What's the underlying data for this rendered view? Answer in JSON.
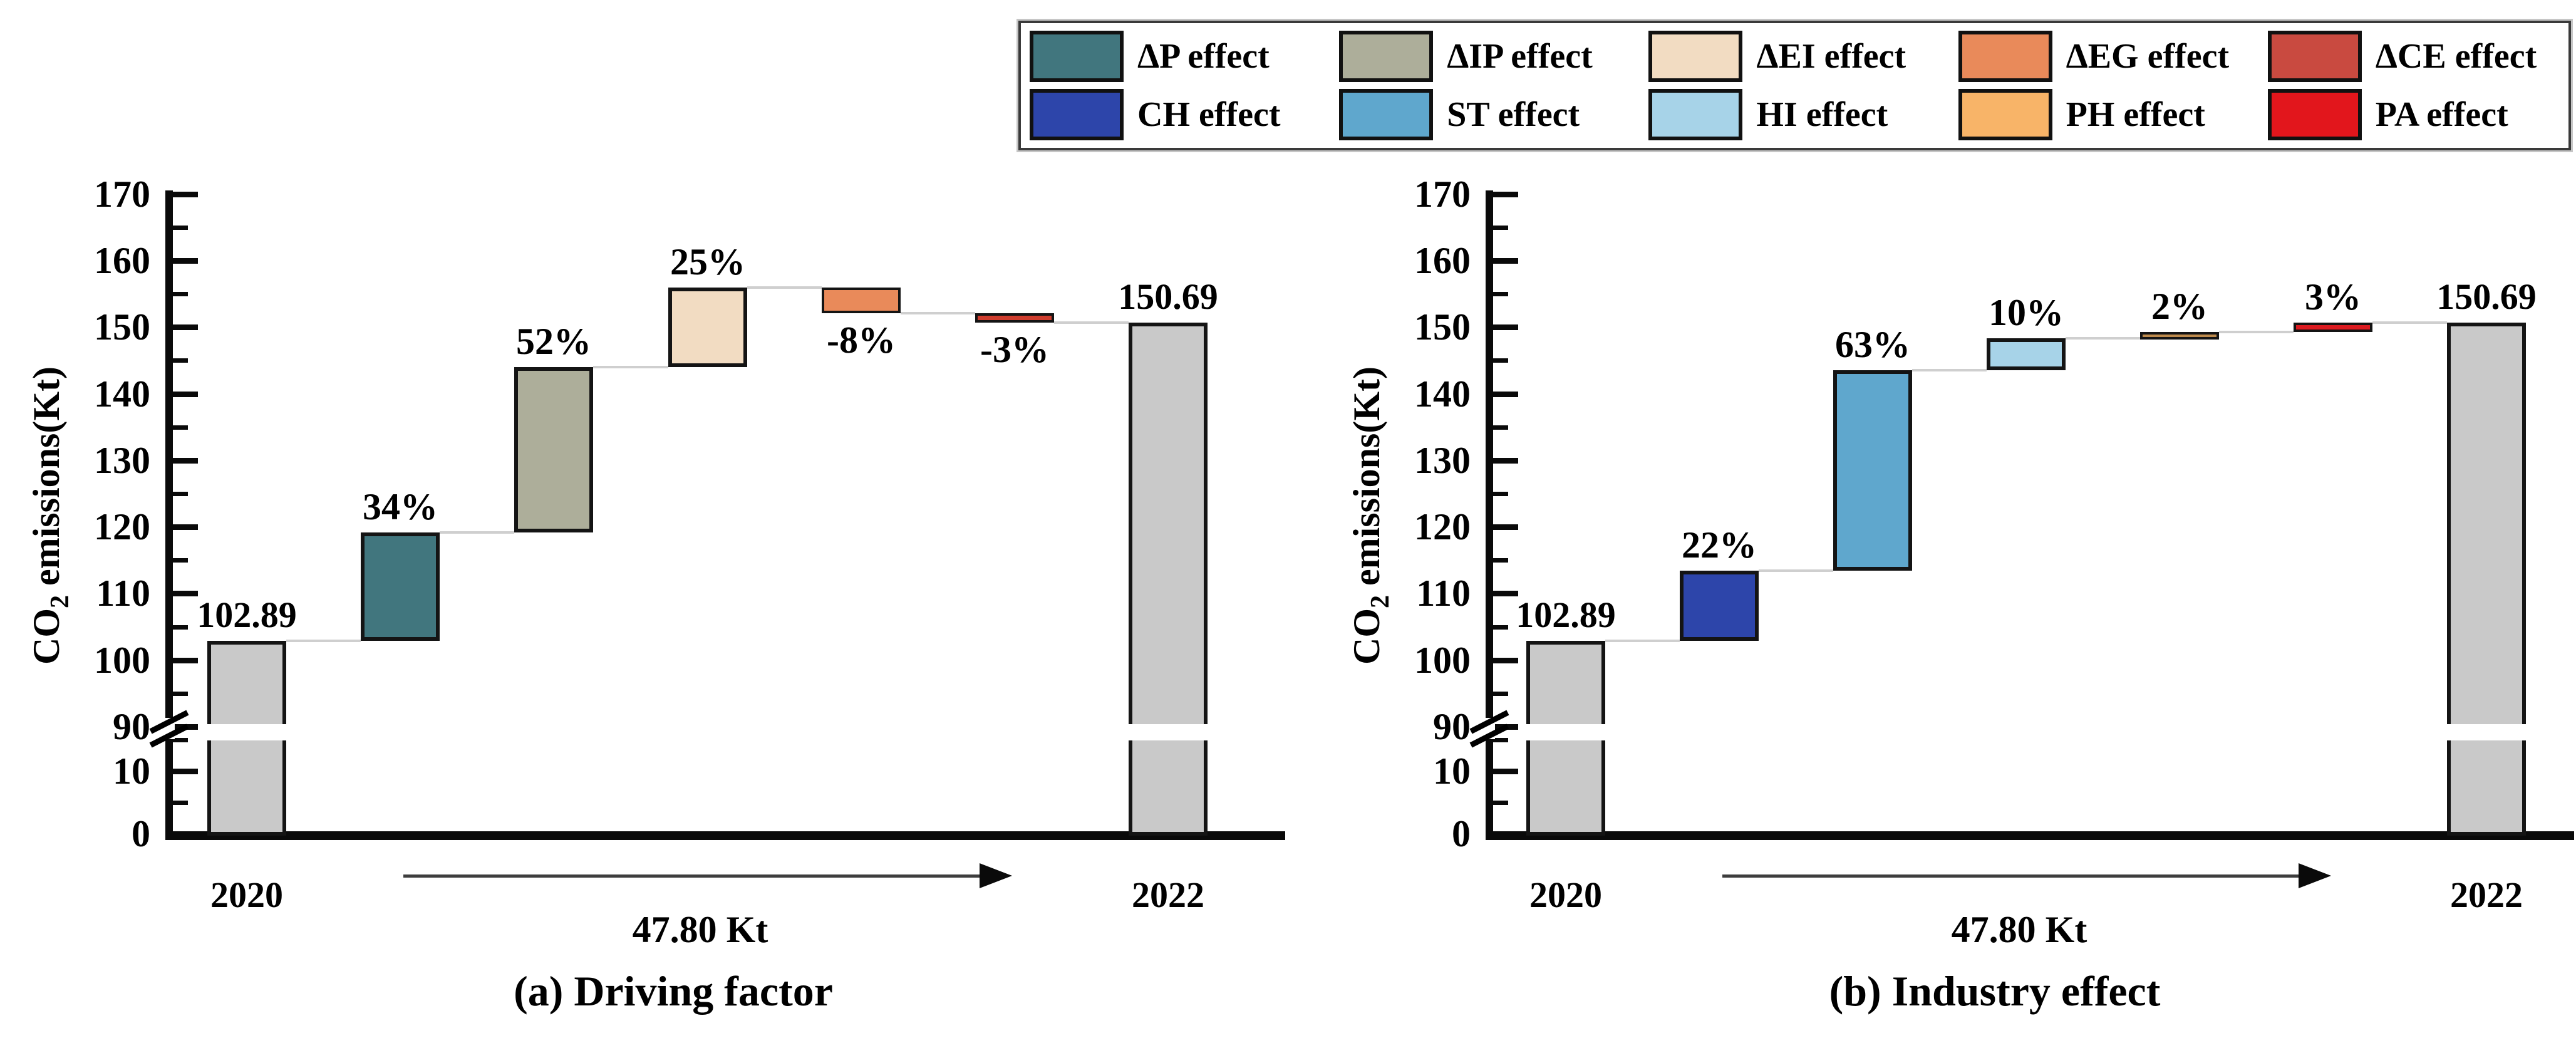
{
  "legend": {
    "items": [
      {
        "label": "ΔP effect",
        "color": "#41767e"
      },
      {
        "label": "ΔIP effect",
        "color": "#adae9a"
      },
      {
        "label": "ΔEI effect",
        "color": "#f2dcc2"
      },
      {
        "label": "ΔEG effect",
        "color": "#e98a5a"
      },
      {
        "label": "ΔCE effect",
        "color": "#c94a40"
      },
      {
        "label": "CH effect",
        "color": "#2d45aa"
      },
      {
        "label": "ST effect",
        "color": "#5fa7cd"
      },
      {
        "label": "HI effect",
        "color": "#a7d3e8"
      },
      {
        "label": "PH effect",
        "color": "#f8b468"
      },
      {
        "label": "PA effect",
        "color": "#e2161c"
      }
    ]
  },
  "chart_data": [
    {
      "type": "bar",
      "subtype": "waterfall",
      "title": "(a) Driving factor",
      "ylabel_parts": [
        "CO",
        "2",
        " emissions(Kt)"
      ],
      "ylim": [
        0,
        170
      ],
      "y_axis_break": [
        15,
        90
      ],
      "y_major_ticks": [
        170,
        160,
        150,
        140,
        130,
        120,
        110,
        100,
        90,
        10,
        0
      ],
      "y_tick_labels": [
        "170",
        "160",
        "150",
        "140",
        "130",
        "120",
        "110",
        "100",
        "90",
        "10",
        "0"
      ],
      "y_minor_ticks": [
        165,
        155,
        145,
        135,
        125,
        115,
        105,
        95,
        15,
        5
      ],
      "x_labels": [
        "2020",
        "2022"
      ],
      "start_value": 102.89,
      "end_value": 150.69,
      "start_value_label": "102.89",
      "end_value_label": "150.69",
      "total_change_label": "47.80 Kt",
      "base_bar_color": "#c9c9c9",
      "steps": [
        {
          "name": "ΔP effect",
          "label": "34%",
          "pct": 34,
          "from": 102.89,
          "to": 119.14,
          "color": "#41767e",
          "label_position": "above"
        },
        {
          "name": "ΔIP effect",
          "label": "52%",
          "pct": 52,
          "from": 119.14,
          "to": 144.0,
          "color": "#adae9a",
          "label_position": "above"
        },
        {
          "name": "ΔEI effect",
          "label": "25%",
          "pct": 25,
          "from": 144.0,
          "to": 155.95,
          "color": "#f2dcc2",
          "label_position": "above"
        },
        {
          "name": "ΔEG effect",
          "label": "-8%",
          "pct": -8,
          "from": 155.95,
          "to": 152.13,
          "color": "#e98a5a",
          "label_position": "below"
        },
        {
          "name": "ΔCE effect",
          "label": "-3%",
          "pct": -3,
          "from": 152.13,
          "to": 150.69,
          "color": "#cf3d2e",
          "label_position": "below"
        }
      ]
    },
    {
      "type": "bar",
      "subtype": "waterfall",
      "title": "(b) Industry effect",
      "ylabel_parts": [
        "CO",
        "2",
        " emissions(Kt)"
      ],
      "ylim": [
        0,
        170
      ],
      "y_axis_break": [
        15,
        90
      ],
      "y_major_ticks": [
        170,
        160,
        150,
        140,
        130,
        120,
        110,
        100,
        90,
        10,
        0
      ],
      "y_tick_labels": [
        "170",
        "160",
        "150",
        "140",
        "130",
        "120",
        "110",
        "100",
        "90",
        "10",
        "0"
      ],
      "y_minor_ticks": [
        165,
        155,
        145,
        135,
        125,
        115,
        105,
        95,
        15,
        5
      ],
      "x_labels": [
        "2020",
        "2022"
      ],
      "start_value": 102.89,
      "end_value": 150.69,
      "start_value_label": "102.89",
      "end_value_label": "150.69",
      "total_change_label": "47.80 Kt",
      "base_bar_color": "#c9c9c9",
      "steps": [
        {
          "name": "CH effect",
          "label": "22%",
          "pct": 22,
          "from": 102.89,
          "to": 113.41,
          "color": "#2d45aa",
          "label_position": "above"
        },
        {
          "name": "ST effect",
          "label": "63%",
          "pct": 63,
          "from": 113.41,
          "to": 143.52,
          "color": "#5fa7cd",
          "label_position": "above"
        },
        {
          "name": "HI effect",
          "label": "10%",
          "pct": 10,
          "from": 143.52,
          "to": 148.3,
          "color": "#a7d3e8",
          "label_position": "above"
        },
        {
          "name": "PH effect",
          "label": "2%",
          "pct": 2,
          "from": 148.3,
          "to": 149.26,
          "color": "#bd8a4c",
          "label_position": "above"
        },
        {
          "name": "PA effect",
          "label": "3%",
          "pct": 3,
          "from": 149.26,
          "to": 150.69,
          "color": "#dc1a20",
          "label_position": "above"
        }
      ]
    }
  ]
}
